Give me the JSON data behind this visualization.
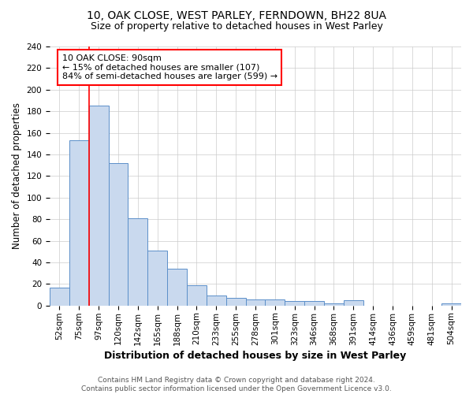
{
  "title1": "10, OAK CLOSE, WEST PARLEY, FERNDOWN, BH22 8UA",
  "title2": "Size of property relative to detached houses in West Parley",
  "xlabel": "Distribution of detached houses by size in West Parley",
  "ylabel": "Number of detached properties",
  "bar_labels": [
    "52sqm",
    "75sqm",
    "97sqm",
    "120sqm",
    "142sqm",
    "165sqm",
    "188sqm",
    "210sqm",
    "233sqm",
    "255sqm",
    "278sqm",
    "301sqm",
    "323sqm",
    "346sqm",
    "368sqm",
    "391sqm",
    "414sqm",
    "436sqm",
    "459sqm",
    "481sqm",
    "504sqm"
  ],
  "bar_values": [
    17,
    153,
    185,
    132,
    81,
    51,
    34,
    19,
    9,
    7,
    6,
    6,
    4,
    4,
    2,
    5,
    0,
    0,
    0,
    0,
    2
  ],
  "bar_color": "#c9d9ee",
  "bar_edge_color": "#5b8fc9",
  "vline_x": 1.5,
  "vline_color": "red",
  "annotation_text": "10 OAK CLOSE: 90sqm\n← 15% of detached houses are smaller (107)\n84% of semi-detached houses are larger (599) →",
  "annotation_box_color": "white",
  "annotation_box_edge": "red",
  "ylim": [
    0,
    240
  ],
  "yticks": [
    0,
    20,
    40,
    60,
    80,
    100,
    120,
    140,
    160,
    180,
    200,
    220,
    240
  ],
  "footer": "Contains HM Land Registry data © Crown copyright and database right 2024.\nContains public sector information licensed under the Open Government Licence v3.0.",
  "title1_fontsize": 10,
  "title2_fontsize": 9,
  "xlabel_fontsize": 9,
  "ylabel_fontsize": 8.5,
  "tick_fontsize": 7.5,
  "annotation_fontsize": 8,
  "footer_fontsize": 6.5
}
